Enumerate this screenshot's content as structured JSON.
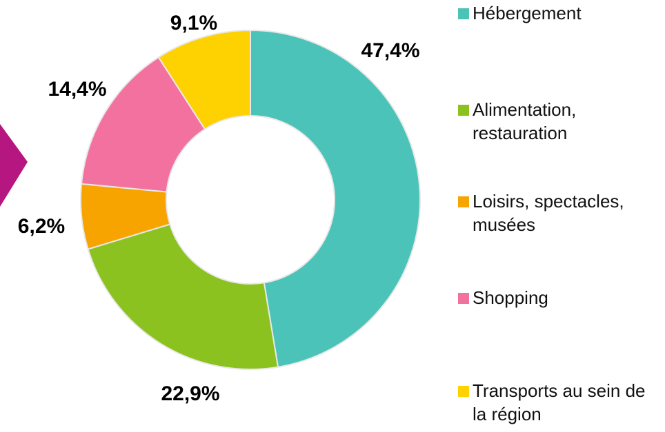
{
  "chart_data": {
    "type": "donut",
    "categories": [
      "Hébergement",
      "Alimentation, restauration",
      "Loisirs, spectacles, musées",
      "Shopping",
      "Transports au sein de la région"
    ],
    "values": [
      47.4,
      22.9,
      6.2,
      14.4,
      9.1
    ],
    "value_labels": [
      "47,4%",
      "22,9%",
      "6,2%",
      "14,4%",
      "9,1%"
    ],
    "colors": [
      "#4cc3b9",
      "#8cc21f",
      "#f7a400",
      "#f2719f",
      "#fed200"
    ],
    "legend": "right"
  }
}
